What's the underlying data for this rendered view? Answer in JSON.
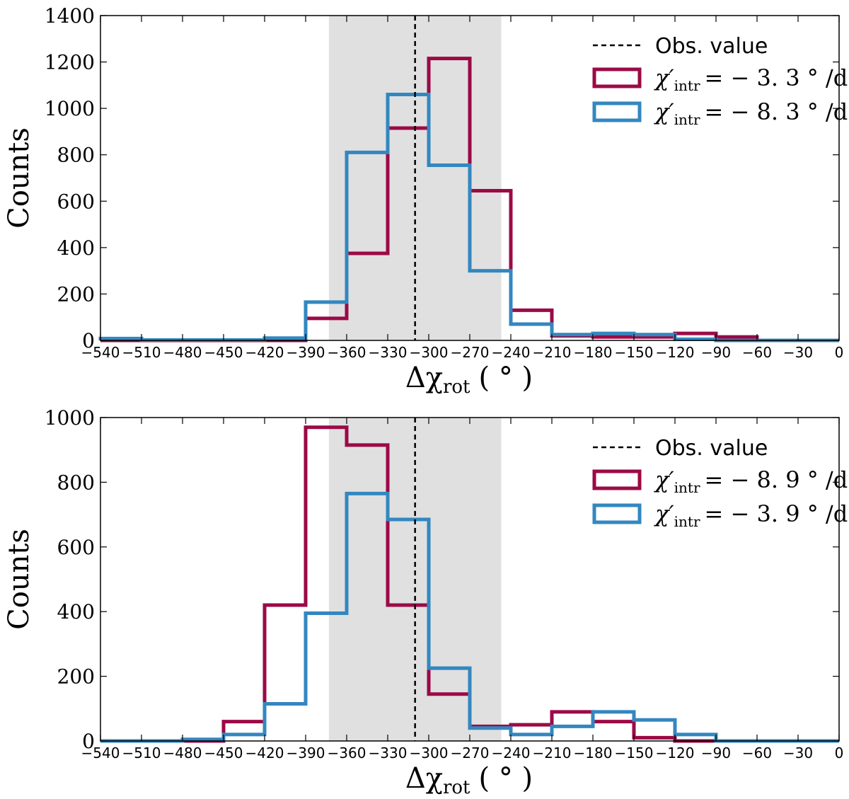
{
  "colors": {
    "red": "#9b0a46",
    "blue": "#3387c0",
    "shade": "#e0e0e0",
    "obs": "#000000"
  },
  "chart_data": [
    {
      "type": "histogram",
      "xlabel": "Δχ_rot (°)",
      "xlabel_main": "Δχ",
      "xlabel_sub": "rot",
      "xlabel_unit": "( ° )",
      "ylabel": "Counts",
      "xlim": [
        -540,
        0
      ],
      "ylim": [
        0,
        1400
      ],
      "xticks": [
        -540,
        -510,
        -480,
        -450,
        -420,
        -390,
        -360,
        -330,
        -300,
        -270,
        -240,
        -210,
        -180,
        -150,
        -120,
        -90,
        -60,
        -30,
        0
      ],
      "xtick_labels": [
        "−540",
        "−510",
        "−480",
        "−450",
        "−420",
        "−390",
        "−360",
        "−330",
        "−300",
        "−270",
        "−240",
        "−210",
        "−180",
        "−150",
        "−120",
        "−90",
        "−60",
        "−30",
        "0"
      ],
      "yticks": [
        0,
        200,
        400,
        600,
        800,
        1000,
        1200,
        1400
      ],
      "ytick_labels": [
        "0",
        "200",
        "400",
        "600",
        "800",
        "1000",
        "1200",
        "1400"
      ],
      "bin_edges": [
        -540,
        -510,
        -480,
        -450,
        -420,
        -390,
        -360,
        -330,
        -300,
        -270,
        -240,
        -210,
        -180,
        -150,
        -120,
        -90,
        -60,
        -30,
        0
      ],
      "obs_value": -310,
      "shade_range": [
        -373,
        -247
      ],
      "legend": {
        "obs_label": "Obs. value",
        "position": "top-right"
      },
      "series": [
        {
          "name": "χ′intr = −3.3°/d",
          "label_sub": "intr",
          "label_value": "= − 3. 3 ° /d",
          "color_key": "red",
          "values": [
            0,
            0,
            0,
            0,
            0,
            95,
            375,
            915,
            1215,
            645,
            130,
            20,
            15,
            15,
            30,
            15,
            0,
            0
          ]
        },
        {
          "name": "χ′intr = −8.3°/d",
          "label_sub": "intr",
          "label_value": "= − 8. 3 ° /d",
          "color_key": "blue",
          "values": [
            8,
            2,
            2,
            2,
            10,
            165,
            810,
            1060,
            755,
            300,
            70,
            25,
            30,
            25,
            5,
            0,
            0,
            0
          ]
        }
      ]
    },
    {
      "type": "histogram",
      "xlabel": "Δχ_rot (°)",
      "xlabel_main": "Δχ",
      "xlabel_sub": "rot",
      "xlabel_unit": "( ° )",
      "ylabel": "Counts",
      "xlim": [
        -540,
        0
      ],
      "ylim": [
        0,
        1000
      ],
      "xticks": [
        -540,
        -510,
        -480,
        -450,
        -420,
        -390,
        -360,
        -330,
        -300,
        -270,
        -240,
        -210,
        -180,
        -150,
        -120,
        -90,
        -60,
        -30,
        0
      ],
      "xtick_labels": [
        "−540",
        "−510",
        "−480",
        "−450",
        "−420",
        "−390",
        "−360",
        "−330",
        "−300",
        "−270",
        "−240",
        "−210",
        "−180",
        "−150",
        "−120",
        "−90",
        "−60",
        "−30",
        "0"
      ],
      "yticks": [
        0,
        200,
        400,
        600,
        800,
        1000
      ],
      "ytick_labels": [
        "0",
        "200",
        "400",
        "600",
        "800",
        "1000"
      ],
      "bin_edges": [
        -540,
        -510,
        -480,
        -450,
        -420,
        -390,
        -360,
        -330,
        -300,
        -270,
        -240,
        -210,
        -180,
        -150,
        -120,
        -90,
        -60,
        -30,
        0
      ],
      "obs_value": -310,
      "shade_range": [
        -373,
        -247
      ],
      "legend": {
        "obs_label": "Obs. value",
        "position": "top-right"
      },
      "series": [
        {
          "name": "χ′intr = −8.9°/d",
          "label_sub": "intr",
          "label_value": "= − 8. 9 ° /d",
          "color_key": "red",
          "values": [
            0,
            0,
            0,
            60,
            420,
            970,
            915,
            420,
            145,
            45,
            50,
            90,
            60,
            10,
            0,
            0,
            0,
            0
          ]
        },
        {
          "name": "χ′intr = −3.9°/d",
          "label_sub": "intr",
          "label_value": "= − 3. 9 ° /d",
          "color_key": "blue",
          "values": [
            0,
            0,
            5,
            20,
            115,
            395,
            765,
            685,
            225,
            40,
            20,
            45,
            90,
            65,
            20,
            0,
            0,
            0
          ]
        }
      ]
    }
  ]
}
